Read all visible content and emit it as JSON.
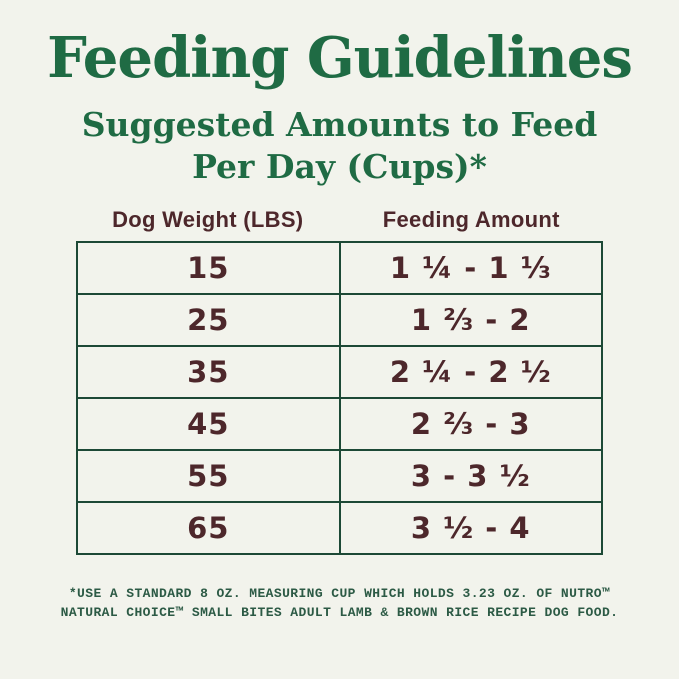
{
  "title": "Feeding Guidelines",
  "subtitle": {
    "line1": "Suggested Amounts to Feed",
    "line2": "Per Day (Cups)*"
  },
  "table": {
    "columns": [
      "Dog Weight (LBS)",
      "Feeding Amount"
    ],
    "rows": [
      {
        "weight": "15",
        "amount": "1 ¼ - 1 ⅓"
      },
      {
        "weight": "25",
        "amount": "1 ⅔ - 2"
      },
      {
        "weight": "35",
        "amount": "2 ¼ - 2 ½"
      },
      {
        "weight": "45",
        "amount": "2 ⅔ - 3"
      },
      {
        "weight": "55",
        "amount": "3 - 3 ½"
      },
      {
        "weight": "65",
        "amount": "3 ½ - 4"
      }
    ]
  },
  "footnote": {
    "line1": "*USE A STANDARD 8 OZ. MEASURING CUP WHICH HOLDS 3.23 OZ. OF NUTRO™",
    "line2": "NATURAL CHOICE™ SMALL BITES ADULT LAMB & BROWN RICE RECIPE DOG FOOD."
  },
  "colors": {
    "background": "#f2f3ec",
    "title_green": "#1f6b44",
    "table_border_green": "#1d4936",
    "cell_text_maroon": "#4d272b",
    "footnote_green": "#2c5a45"
  },
  "chart_data": {
    "type": "table",
    "title": "Feeding Guidelines",
    "subtitle": "Suggested Amounts to Feed Per Day (Cups)*",
    "columns": [
      "Dog Weight (LBS)",
      "Feeding Amount"
    ],
    "rows": [
      [
        "15",
        "1 ¼ - 1 ⅓"
      ],
      [
        "25",
        "1 ⅔ - 2"
      ],
      [
        "35",
        "2 ¼ - 2 ½"
      ],
      [
        "45",
        "2 ⅔ - 3"
      ],
      [
        "55",
        "3 - 3 ½"
      ],
      [
        "65",
        "3 ½ - 4"
      ]
    ],
    "weights_lbs": [
      15,
      25,
      35,
      45,
      55,
      65
    ],
    "feeding_cups_min": [
      1.25,
      1.67,
      2.25,
      2.67,
      3,
      3.5
    ],
    "feeding_cups_max": [
      1.33,
      2,
      2.5,
      3,
      3.5,
      4
    ],
    "footnote": "*USE A STANDARD 8 OZ. MEASURING CUP WHICH HOLDS 3.23 OZ. OF NUTRO™ NATURAL CHOICE™ SMALL BITES ADULT LAMB & BROWN RICE RECIPE DOG FOOD."
  }
}
